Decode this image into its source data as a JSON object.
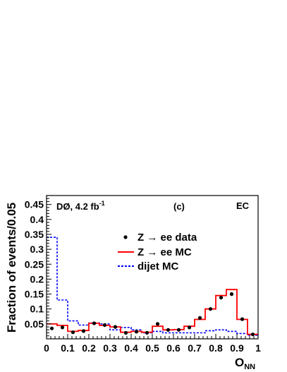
{
  "chart_data": {
    "type": "step",
    "experiment": "DØ, 4.2 fb",
    "luminosity_superscript": "-1",
    "panel_label": "(c)",
    "region_label": "EC",
    "ylabel": "Fraction of events/0.05",
    "xlabel_main": "O",
    "xlabel_sub": "NN",
    "xlim": [
      0,
      1
    ],
    "ylim": [
      0,
      0.48
    ],
    "bin_width": 0.05,
    "x_ticks": [
      "0",
      "0.1",
      "0.2",
      "0.3",
      "0.4",
      "0.5",
      "0.6",
      "0.7",
      "0.8",
      "0.9",
      "1"
    ],
    "x_tick_values": [
      0,
      0.1,
      0.2,
      0.3,
      0.4,
      0.5,
      0.6,
      0.7,
      0.8,
      0.9,
      1
    ],
    "y_ticks": [
      "0.05",
      "0.1",
      "0.15",
      "0.2",
      "0.25",
      "0.3",
      "0.35",
      "0.4",
      "0.45"
    ],
    "y_tick_values": [
      0.05,
      0.1,
      0.15,
      0.2,
      0.25,
      0.3,
      0.35,
      0.4,
      0.45
    ],
    "bin_centers": [
      0.025,
      0.075,
      0.125,
      0.175,
      0.225,
      0.275,
      0.325,
      0.375,
      0.425,
      0.475,
      0.525,
      0.575,
      0.625,
      0.675,
      0.725,
      0.775,
      0.825,
      0.875,
      0.925,
      0.975
    ],
    "series": [
      {
        "name": "Z → ee data",
        "style": "points",
        "color": "#000000",
        "values": [
          0.035,
          0.038,
          0.022,
          0.026,
          0.052,
          0.046,
          0.04,
          0.02,
          0.024,
          0.02,
          0.05,
          0.03,
          0.03,
          0.038,
          0.07,
          0.1,
          0.138,
          0.15,
          0.066,
          0.015
        ]
      },
      {
        "name": "Z → ee MC",
        "style": "solid-step",
        "color": "#ff0000",
        "values": [
          0.05,
          0.045,
          0.025,
          0.028,
          0.052,
          0.045,
          0.04,
          0.022,
          0.025,
          0.022,
          0.042,
          0.03,
          0.031,
          0.042,
          0.065,
          0.1,
          0.145,
          0.165,
          0.065,
          0.015
        ]
      },
      {
        "name": "dijet MC",
        "style": "dashed-step",
        "color": "#0000ff",
        "values": [
          0.34,
          0.13,
          0.06,
          0.046,
          0.053,
          0.05,
          0.03,
          0.038,
          0.03,
          0.02,
          0.025,
          0.02,
          0.02,
          0.02,
          0.02,
          0.027,
          0.03,
          0.025,
          0.018,
          0.012
        ]
      }
    ]
  }
}
